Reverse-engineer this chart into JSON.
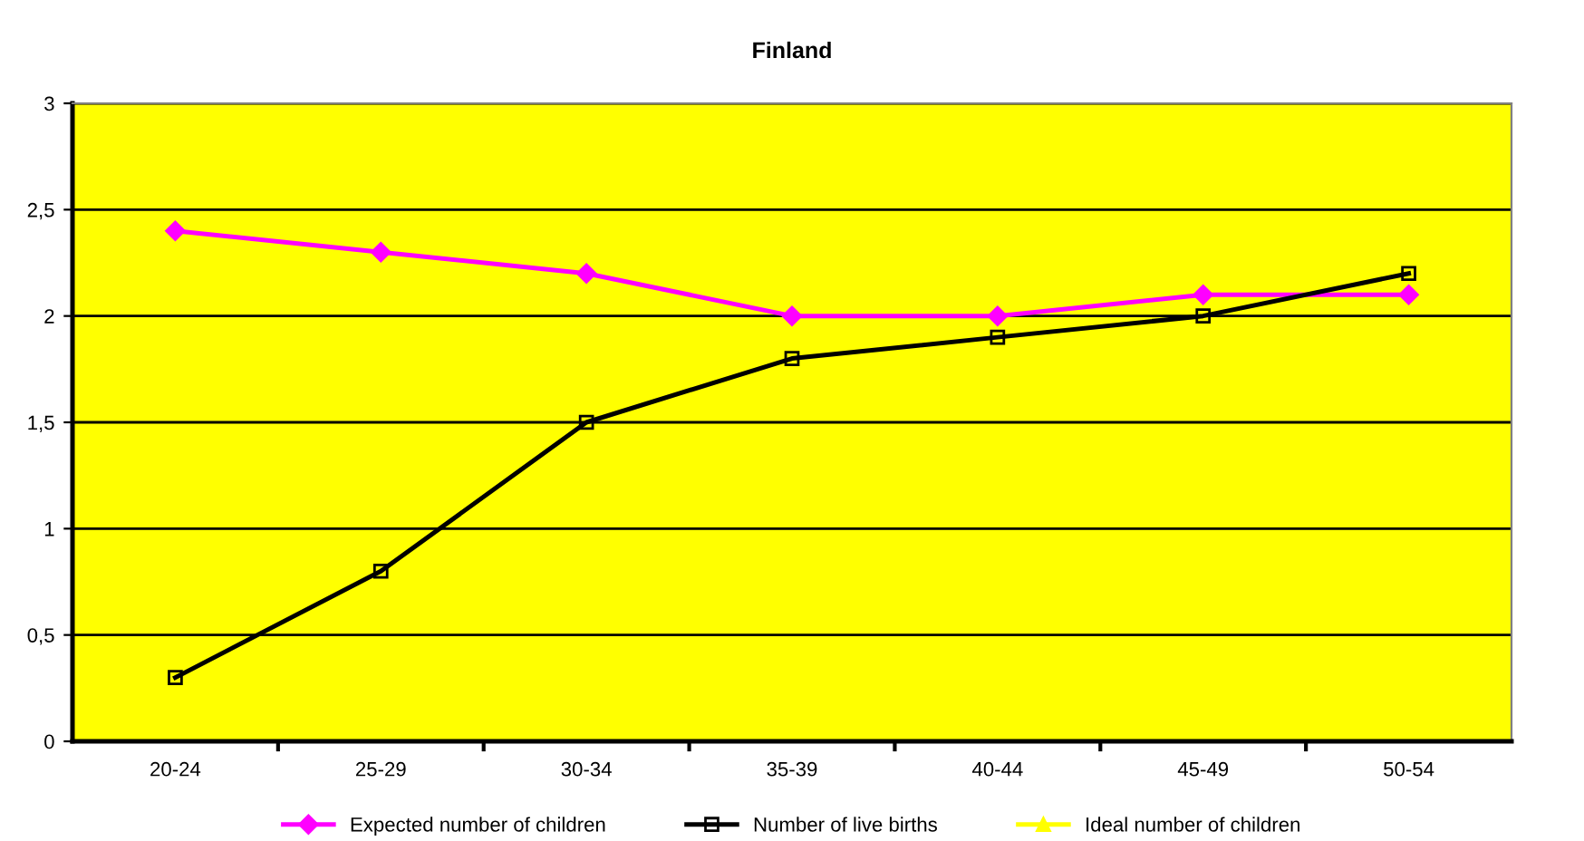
{
  "chart_data": {
    "type": "line",
    "title": "Finland",
    "categories": [
      "20-24",
      "25-29",
      "30-34",
      "35-39",
      "40-44",
      "45-49",
      "50-54"
    ],
    "series": [
      {
        "name": "Expected number of children",
        "color": "#ff00ff",
        "marker": "diamond",
        "values": [
          2.4,
          2.3,
          2.2,
          2.0,
          2.0,
          2.1,
          2.1
        ]
      },
      {
        "name": "Number of live births",
        "color": "#000000",
        "marker": "square",
        "values": [
          0.3,
          0.8,
          1.5,
          1.8,
          1.9,
          2.0,
          2.2
        ]
      },
      {
        "name": "Ideal number of children",
        "color": "#ffff00",
        "marker": "triangle",
        "values": [
          null,
          null,
          null,
          null,
          null,
          null,
          null
        ]
      }
    ],
    "ylim": [
      0,
      3
    ],
    "yticks": [
      0,
      {
        "value": 0.5,
        "label": "0,5"
      },
      1,
      {
        "value": 1.5,
        "label": "1,5"
      },
      2,
      {
        "value": 2.5,
        "label": "2,5"
      },
      3
    ],
    "grid": "y",
    "legend": "bottom",
    "line_style": "solid"
  }
}
